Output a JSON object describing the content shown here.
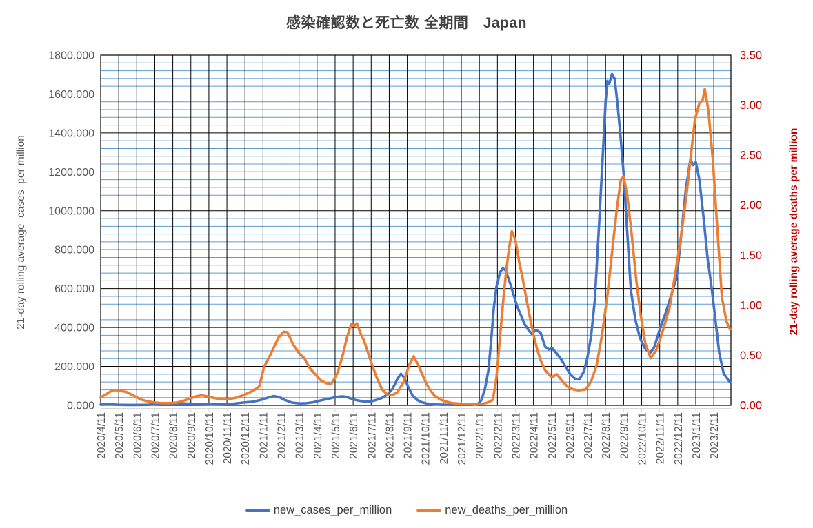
{
  "title": "感染確認数と死亡数 全期間　Japan",
  "y_left_axis_title": "21-day rolling average  cases  per million",
  "y_right_axis_title": "21-day rolling average deaths per million",
  "colors": {
    "cases_line": "#4472C4",
    "deaths_line": "#ED7D31",
    "right_axis_text": "#C00000",
    "left_axis_text": "#595959",
    "title_text": "#404040",
    "minor_grid": "#5B9BD5",
    "major_grid": "#000000",
    "category_axis": "#D9D9D9"
  },
  "legend": {
    "items": [
      {
        "label": "new_cases_per_million",
        "color": "#4472C4"
      },
      {
        "label": "new_deaths_per_million",
        "color": "#ED7D31"
      }
    ]
  },
  "chart_data": {
    "type": "line",
    "title": "感染確認数と死亡数 全期間　Japan",
    "x_tick_labels": [
      "2020/4/11",
      "2020/5/11",
      "2020/6/11",
      "2020/7/11",
      "2020/8/11",
      "2020/9/11",
      "2020/10/11",
      "2020/11/11",
      "2020/12/11",
      "2021/1/11",
      "2021/2/11",
      "2021/3/11",
      "2021/4/11",
      "2021/5/11",
      "2021/6/11",
      "2021/7/11",
      "2021/8/11",
      "2021/9/11",
      "2021/10/11",
      "2021/11/11",
      "2021/12/11",
      "2022/1/11",
      "2022/2/11",
      "2022/3/11",
      "2022/4/11",
      "2022/5/11",
      "2022/6/11",
      "2022/7/11",
      "2022/8/11",
      "2022/9/11",
      "2022/10/11",
      "2022/11/11",
      "2022/12/11",
      "2023/1/11",
      "2023/2/11"
    ],
    "x_axis_span_months": 34.95,
    "y_left": {
      "label": "21-day rolling average  cases  per million",
      "min": 0,
      "max": 1800,
      "major": 200,
      "minor": 40,
      "decimals": 3
    },
    "y_right": {
      "label": "21-day rolling average deaths per million",
      "min": 0,
      "max": 3.5,
      "major": 0.5,
      "decimals": 2
    },
    "grid": {
      "vertical_major": true,
      "horizontal_major": true,
      "horizontal_minor": true
    },
    "series": [
      {
        "name": "new_cases_per_million",
        "axis": "left",
        "color": "#4472C4",
        "points": [
          [
            0,
            4
          ],
          [
            0.5,
            5
          ],
          [
            1,
            3
          ],
          [
            1.5,
            2
          ],
          [
            2,
            2
          ],
          [
            2.6,
            3
          ],
          [
            3.2,
            6
          ],
          [
            3.8,
            9
          ],
          [
            4.4,
            10
          ],
          [
            5,
            8
          ],
          [
            5.6,
            6
          ],
          [
            6.2,
            5
          ],
          [
            6.8,
            6
          ],
          [
            7.4,
            9
          ],
          [
            7.9,
            14
          ],
          [
            8.4,
            18
          ],
          [
            8.9,
            28
          ],
          [
            9.3,
            40
          ],
          [
            9.6,
            48
          ],
          [
            9.9,
            42
          ],
          [
            10.2,
            28
          ],
          [
            10.6,
            14
          ],
          [
            11,
            10
          ],
          [
            11.4,
            11
          ],
          [
            11.8,
            16
          ],
          [
            12.2,
            25
          ],
          [
            12.6,
            33
          ],
          [
            13,
            42
          ],
          [
            13.35,
            46
          ],
          [
            13.6,
            44
          ],
          [
            13.9,
            34
          ],
          [
            14.2,
            26
          ],
          [
            14.6,
            20
          ],
          [
            14.95,
            19
          ],
          [
            15.3,
            28
          ],
          [
            15.6,
            38
          ],
          [
            15.9,
            55
          ],
          [
            16.2,
            87
          ],
          [
            16.45,
            135
          ],
          [
            16.65,
            162
          ],
          [
            16.85,
            140
          ],
          [
            17.05,
            95
          ],
          [
            17.3,
            50
          ],
          [
            17.55,
            28
          ],
          [
            17.8,
            16
          ],
          [
            18.1,
            9
          ],
          [
            18.5,
            5
          ],
          [
            19,
            3
          ],
          [
            20,
            3
          ],
          [
            20.5,
            3
          ],
          [
            20.9,
            6
          ],
          [
            21.1,
            25
          ],
          [
            21.3,
            80
          ],
          [
            21.5,
            180
          ],
          [
            21.65,
            330
          ],
          [
            21.8,
            500
          ],
          [
            21.95,
            610
          ],
          [
            22.15,
            685
          ],
          [
            22.3,
            704
          ],
          [
            22.45,
            695
          ],
          [
            22.6,
            655
          ],
          [
            22.75,
            615
          ],
          [
            22.9,
            567
          ],
          [
            23.1,
            507
          ],
          [
            23.3,
            464
          ],
          [
            23.5,
            418
          ],
          [
            23.7,
            390
          ],
          [
            23.9,
            367
          ],
          [
            24.15,
            388
          ],
          [
            24.4,
            372
          ],
          [
            24.65,
            301
          ],
          [
            24.85,
            288
          ],
          [
            25.05,
            293
          ],
          [
            25.3,
            265
          ],
          [
            25.55,
            235
          ],
          [
            25.8,
            195
          ],
          [
            26.05,
            158
          ],
          [
            26.3,
            137
          ],
          [
            26.55,
            133
          ],
          [
            26.8,
            175
          ],
          [
            27,
            250
          ],
          [
            27.2,
            360
          ],
          [
            27.4,
            540
          ],
          [
            27.65,
            950
          ],
          [
            27.9,
            1380
          ],
          [
            28,
            1560
          ],
          [
            28.1,
            1668
          ],
          [
            28.2,
            1652
          ],
          [
            28.35,
            1703
          ],
          [
            28.5,
            1680
          ],
          [
            28.65,
            1560
          ],
          [
            28.8,
            1410
          ],
          [
            29,
            1190
          ],
          [
            29.2,
            890
          ],
          [
            29.4,
            590
          ],
          [
            29.65,
            440
          ],
          [
            29.9,
            348
          ],
          [
            30.15,
            297
          ],
          [
            30.45,
            267
          ],
          [
            30.7,
            300
          ],
          [
            31,
            390
          ],
          [
            31.35,
            480
          ],
          [
            31.65,
            570
          ],
          [
            31.95,
            660
          ],
          [
            32.2,
            880
          ],
          [
            32.45,
            1110
          ],
          [
            32.7,
            1265
          ],
          [
            32.85,
            1235
          ],
          [
            33,
            1250
          ],
          [
            33.2,
            1160
          ],
          [
            33.45,
            950
          ],
          [
            33.65,
            760
          ],
          [
            33.9,
            590
          ],
          [
            34.1,
            430
          ],
          [
            34.3,
            270
          ],
          [
            34.55,
            163
          ],
          [
            34.9,
            118
          ]
        ]
      },
      {
        "name": "new_deaths_per_million",
        "axis": "right",
        "color": "#ED7D31",
        "points": [
          [
            0,
            0.08
          ],
          [
            0.3,
            0.11
          ],
          [
            0.6,
            0.145
          ],
          [
            0.8,
            0.152
          ],
          [
            1.1,
            0.145
          ],
          [
            1.4,
            0.135
          ],
          [
            1.8,
            0.1
          ],
          [
            2.2,
            0.06
          ],
          [
            2.6,
            0.04
          ],
          [
            3,
            0.028
          ],
          [
            3.4,
            0.022
          ],
          [
            3.8,
            0.022
          ],
          [
            4.2,
            0.026
          ],
          [
            4.6,
            0.045
          ],
          [
            5,
            0.07
          ],
          [
            5.3,
            0.09
          ],
          [
            5.6,
            0.1
          ],
          [
            5.9,
            0.09
          ],
          [
            6.3,
            0.072
          ],
          [
            6.7,
            0.06
          ],
          [
            7.1,
            0.062
          ],
          [
            7.5,
            0.075
          ],
          [
            7.9,
            0.1
          ],
          [
            8.2,
            0.125
          ],
          [
            8.5,
            0.15
          ],
          [
            8.8,
            0.19
          ],
          [
            9.05,
            0.38
          ],
          [
            9.45,
            0.52
          ],
          [
            9.85,
            0.675
          ],
          [
            10.15,
            0.735
          ],
          [
            10.35,
            0.73
          ],
          [
            10.7,
            0.6
          ],
          [
            11,
            0.52
          ],
          [
            11.3,
            0.47
          ],
          [
            11.6,
            0.37
          ],
          [
            11.9,
            0.31
          ],
          [
            12.2,
            0.25
          ],
          [
            12.5,
            0.222
          ],
          [
            12.8,
            0.215
          ],
          [
            13.15,
            0.33
          ],
          [
            13.45,
            0.52
          ],
          [
            13.65,
            0.675
          ],
          [
            13.9,
            0.815
          ],
          [
            14.05,
            0.79
          ],
          [
            14.2,
            0.82
          ],
          [
            14.45,
            0.7
          ],
          [
            14.6,
            0.65
          ],
          [
            14.95,
            0.456
          ],
          [
            15.3,
            0.28
          ],
          [
            15.6,
            0.16
          ],
          [
            15.9,
            0.107
          ],
          [
            16.15,
            0.1
          ],
          [
            16.45,
            0.13
          ],
          [
            16.8,
            0.23
          ],
          [
            17.1,
            0.4
          ],
          [
            17.35,
            0.49
          ],
          [
            17.6,
            0.41
          ],
          [
            17.9,
            0.28
          ],
          [
            18.2,
            0.17
          ],
          [
            18.5,
            0.1
          ],
          [
            18.8,
            0.06
          ],
          [
            19.1,
            0.04
          ],
          [
            19.5,
            0.022
          ],
          [
            20,
            0.015
          ],
          [
            20.6,
            0.013
          ],
          [
            21.2,
            0.016
          ],
          [
            21.5,
            0.03
          ],
          [
            21.75,
            0.055
          ],
          [
            21.95,
            0.28
          ],
          [
            22.15,
            0.7
          ],
          [
            22.35,
            1.1
          ],
          [
            22.5,
            1.36
          ],
          [
            22.65,
            1.57
          ],
          [
            22.8,
            1.74
          ],
          [
            23,
            1.65
          ],
          [
            23.2,
            1.44
          ],
          [
            23.4,
            1.27
          ],
          [
            23.6,
            1.07
          ],
          [
            23.8,
            0.88
          ],
          [
            24,
            0.71
          ],
          [
            24.2,
            0.56
          ],
          [
            24.4,
            0.45
          ],
          [
            24.65,
            0.35
          ],
          [
            25,
            0.28
          ],
          [
            25.3,
            0.31
          ],
          [
            25.6,
            0.24
          ],
          [
            25.9,
            0.185
          ],
          [
            26.2,
            0.16
          ],
          [
            26.5,
            0.15
          ],
          [
            26.9,
            0.16
          ],
          [
            27.2,
            0.24
          ],
          [
            27.5,
            0.4
          ],
          [
            27.8,
            0.7
          ],
          [
            28.1,
            1.1
          ],
          [
            28.4,
            1.6
          ],
          [
            28.65,
            2
          ],
          [
            28.85,
            2.26
          ],
          [
            29,
            2.285
          ],
          [
            29.2,
            2.1
          ],
          [
            29.45,
            1.7
          ],
          [
            29.7,
            1.25
          ],
          [
            29.95,
            0.9
          ],
          [
            30.2,
            0.62
          ],
          [
            30.5,
            0.47
          ],
          [
            30.8,
            0.55
          ],
          [
            31.1,
            0.7
          ],
          [
            31.55,
            0.98
          ],
          [
            31.85,
            1.3
          ],
          [
            32.15,
            1.65
          ],
          [
            32.45,
            2.05
          ],
          [
            32.7,
            2.45
          ],
          [
            32.95,
            2.85
          ],
          [
            33.2,
            3.02
          ],
          [
            33.38,
            3.05
          ],
          [
            33.5,
            3.16
          ],
          [
            33.7,
            2.95
          ],
          [
            33.95,
            2.45
          ],
          [
            34.2,
            1.75
          ],
          [
            34.45,
            1.08
          ],
          [
            34.7,
            0.84
          ],
          [
            34.9,
            0.76
          ]
        ]
      }
    ]
  }
}
